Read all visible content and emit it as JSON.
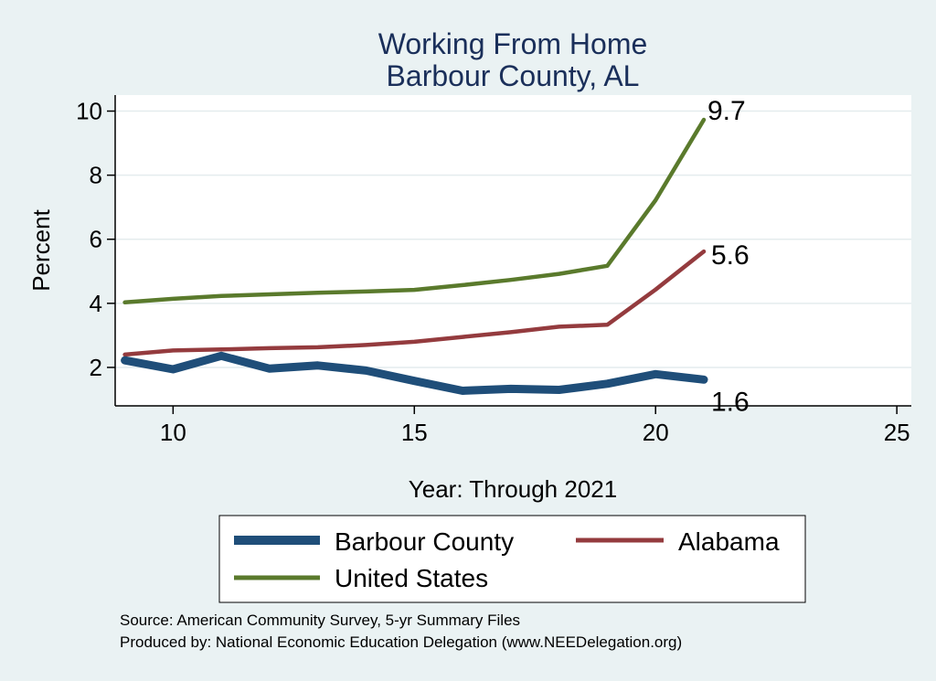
{
  "chart_data": {
    "type": "line",
    "title": "Working From Home",
    "subtitle": "Barbour County, AL",
    "xlabel": "Year: Through 2021",
    "ylabel": "Percent",
    "xlim": [
      8.8,
      25.3
    ],
    "ylim": [
      0.8,
      10.5
    ],
    "xticks": [
      10,
      15,
      20,
      25
    ],
    "yticks": [
      2,
      4,
      6,
      8,
      10
    ],
    "grid": true,
    "x": [
      9,
      10,
      11,
      12,
      13,
      14,
      15,
      16,
      17,
      18,
      19,
      20,
      21
    ],
    "series": [
      {
        "name": "Barbour County",
        "color": "#1f4e79",
        "values": [
          2.22,
          1.94,
          2.36,
          1.96,
          2.06,
          1.9,
          1.58,
          1.27,
          1.33,
          1.3,
          1.49,
          1.79,
          1.62
        ],
        "end_label": "1.6"
      },
      {
        "name": "Alabama",
        "color": "#943b3e",
        "values": [
          2.4,
          2.53,
          2.56,
          2.6,
          2.63,
          2.7,
          2.8,
          2.95,
          3.1,
          3.27,
          3.33,
          4.43,
          5.62
        ],
        "end_label": "5.6"
      },
      {
        "name": "United States",
        "color": "#5a7a2c",
        "values": [
          4.03,
          4.14,
          4.23,
          4.28,
          4.33,
          4.37,
          4.42,
          4.57,
          4.73,
          4.92,
          5.17,
          7.22,
          9.73
        ],
        "end_label": "9.7"
      }
    ],
    "legend": {
      "position": "bottom",
      "entries": [
        "Barbour County",
        "Alabama",
        "United States"
      ]
    },
    "notes": [
      "Source: American Community Survey, 5-yr Summary Files",
      "Produced by: National Economic Education Delegation (www.NEEDelegation.org)"
    ]
  }
}
